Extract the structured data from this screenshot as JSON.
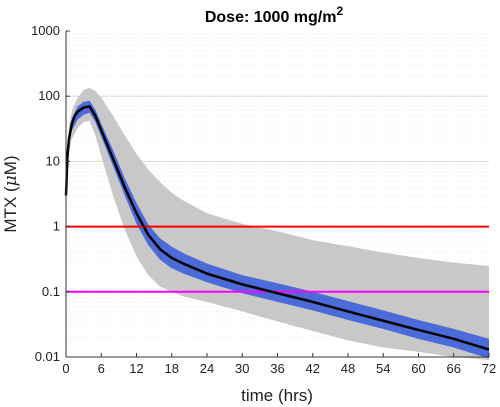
{
  "chart_data": {
    "type": "line",
    "title": {
      "prefix": "Dose: 1000 mg/m",
      "superscript": "2"
    },
    "xlabel": "time (hrs)",
    "ylabel": {
      "prefix": "MTX (",
      "greek": "μ",
      "suffix": "M)"
    },
    "xlim": [
      0,
      72
    ],
    "ylim": [
      0.01,
      1000
    ],
    "yscale": "log",
    "grid": "y-major-and-minor",
    "xticks": [
      0,
      6,
      12,
      18,
      24,
      30,
      36,
      42,
      48,
      54,
      60,
      66,
      72
    ],
    "xtick_labels": [
      "0",
      "6",
      "12",
      "18",
      "24",
      "30",
      "36",
      "42",
      "48",
      "54",
      "60",
      "66",
      "72"
    ],
    "yticks": [
      0.01,
      0.1,
      1,
      10,
      100,
      1000
    ],
    "ytick_labels": [
      "0.01",
      "0.1",
      "1",
      "10",
      "100",
      "1000"
    ],
    "reference_lines": [
      {
        "y": 1,
        "color": "#ff0000"
      },
      {
        "y": 0.1,
        "color": "#ff00ff"
      }
    ],
    "median": {
      "color": "#000000",
      "x": [
        0,
        0.25,
        0.5,
        1,
        1.5,
        2,
        3,
        4,
        5,
        6,
        8,
        10,
        12,
        14,
        16,
        18,
        20,
        24,
        30,
        36,
        42,
        48,
        54,
        60,
        66,
        72
      ],
      "y": [
        3,
        12,
        22,
        38,
        50,
        58,
        67,
        70,
        50,
        30,
        11,
        4,
        1.6,
        0.75,
        0.45,
        0.33,
        0.27,
        0.19,
        0.13,
        0.095,
        0.07,
        0.05,
        0.036,
        0.026,
        0.019,
        0.013
      ]
    },
    "inner_band": {
      "color": "#4a6bd8",
      "x": [
        0,
        0.5,
        1,
        2,
        3,
        4,
        5,
        6,
        8,
        10,
        12,
        14,
        16,
        18,
        20,
        24,
        30,
        36,
        42,
        48,
        54,
        60,
        66,
        72
      ],
      "lower": [
        2.5,
        18,
        30,
        44,
        52,
        56,
        40,
        24,
        8.5,
        3,
        1.1,
        0.52,
        0.31,
        0.23,
        0.19,
        0.14,
        0.095,
        0.07,
        0.052,
        0.037,
        0.027,
        0.019,
        0.014,
        0.0095
      ],
      "upper": [
        3.5,
        28,
        46,
        70,
        82,
        85,
        62,
        38,
        15,
        5.5,
        2.3,
        1.08,
        0.66,
        0.49,
        0.39,
        0.27,
        0.18,
        0.135,
        0.1,
        0.072,
        0.052,
        0.037,
        0.027,
        0.019
      ]
    },
    "outer_band": {
      "color": "#c8c8c8",
      "x": [
        0,
        0.5,
        1,
        2,
        3,
        4,
        5,
        6,
        8,
        10,
        12,
        14,
        16,
        18,
        20,
        24,
        30,
        36,
        42,
        48,
        54,
        60,
        66,
        72
      ],
      "lower": [
        2.5,
        14,
        22,
        33,
        40,
        42,
        25,
        12,
        3,
        0.9,
        0.35,
        0.18,
        0.12,
        0.1,
        0.085,
        0.07,
        0.05,
        0.035,
        0.025,
        0.018,
        0.014,
        0.012,
        0.01,
        0.009
      ],
      "upper": [
        3.5,
        35,
        60,
        95,
        125,
        135,
        120,
        95,
        50,
        25,
        13,
        7.5,
        4.8,
        3.3,
        2.5,
        1.6,
        1.1,
        0.85,
        0.62,
        0.5,
        0.4,
        0.33,
        0.28,
        0.25
      ]
    }
  }
}
